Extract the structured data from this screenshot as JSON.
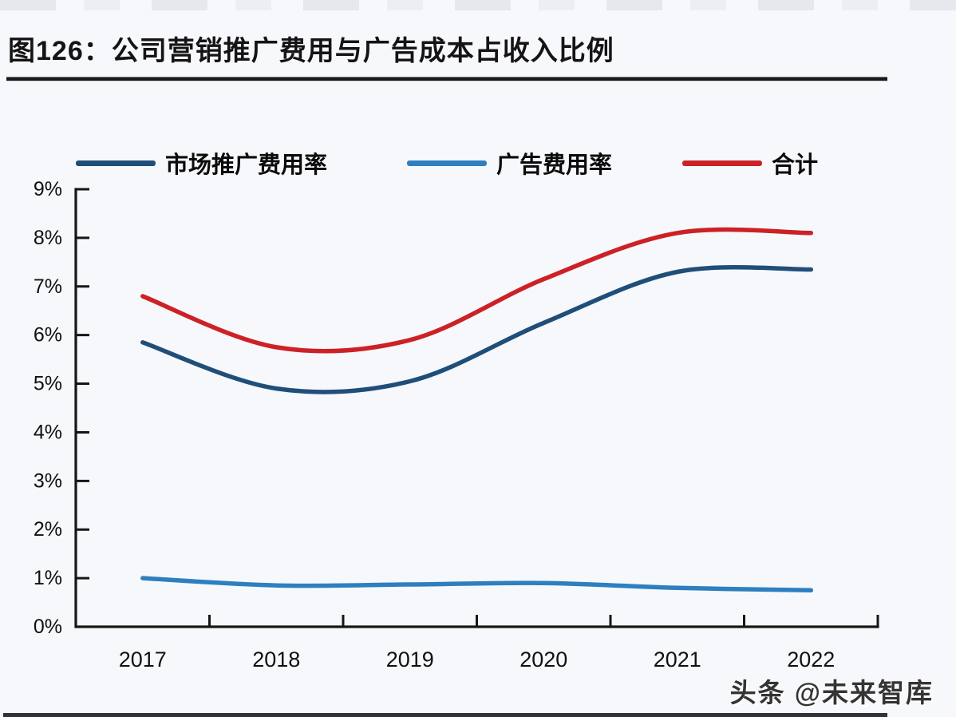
{
  "page": {
    "title": "图126：公司营销推广费用与广告成本占收入比例",
    "watermark": "头条 @未来智库",
    "background_color": "#f7f8fb",
    "accent_rule_color": "#181818"
  },
  "legend": [
    {
      "id": "market-promotion",
      "label": "市场推广费用率",
      "color": "#1f4e79"
    },
    {
      "id": "advertising",
      "label": "广告费用率",
      "color": "#2e7fc1"
    },
    {
      "id": "total",
      "label": "合计",
      "color": "#cc2127"
    }
  ],
  "chart_data": {
    "type": "line",
    "title": "公司营销推广费用与广告成本占收入比例",
    "categories": [
      "2017",
      "2018",
      "2019",
      "2020",
      "2021",
      "2022"
    ],
    "series": [
      {
        "id": "market-promotion",
        "name": "市场推广费用率",
        "color": "#1f4e79",
        "values": [
          5.85,
          4.9,
          5.05,
          6.25,
          7.3,
          7.35
        ]
      },
      {
        "id": "advertising",
        "name": "广告费用率",
        "color": "#2e7fc1",
        "values": [
          1.0,
          0.85,
          0.87,
          0.9,
          0.8,
          0.75
        ]
      },
      {
        "id": "total",
        "name": "合计",
        "color": "#cc2127",
        "values": [
          6.8,
          5.75,
          5.9,
          7.15,
          8.1,
          8.1
        ]
      }
    ],
    "xlabel": "",
    "ylabel": "",
    "ylim": [
      0,
      9
    ],
    "ytick_step": 1,
    "ytick_labels": [
      "0%",
      "1%",
      "2%",
      "3%",
      "4%",
      "5%",
      "6%",
      "7%",
      "8%",
      "9%"
    ],
    "grid": false,
    "legend_position": "top",
    "axis_color": "#161616",
    "line_width": 5.5
  }
}
